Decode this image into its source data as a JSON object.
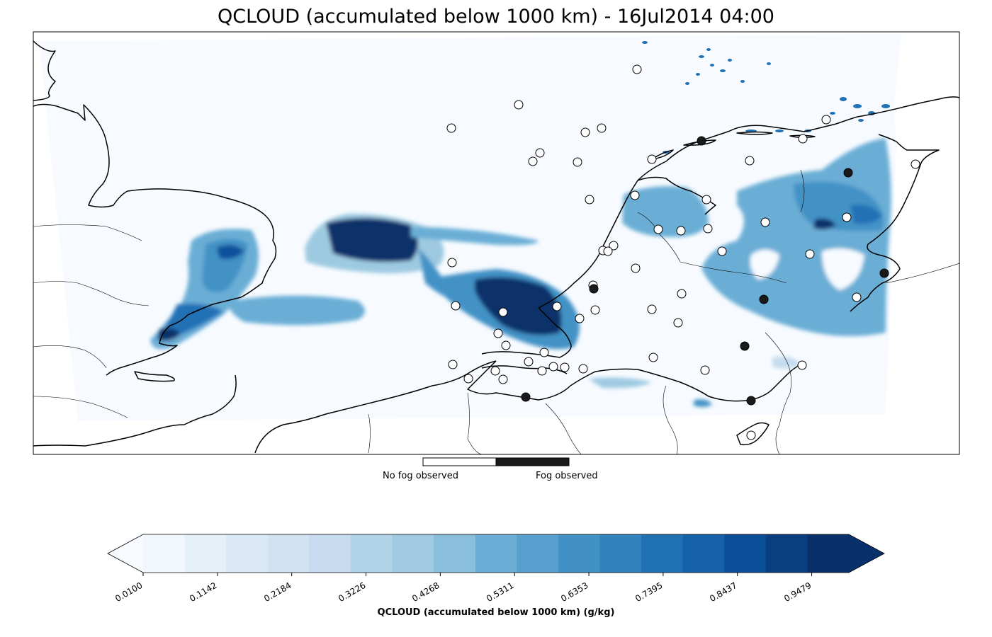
{
  "title": "QCLOUD (accumulated below 1000 km) - 16Jul2014 04:00",
  "map": {
    "background_color": "#f7fbff",
    "coastline_color": "#000000",
    "cloud_colors": [
      "#f7fbff",
      "#c6dbef",
      "#6baed6",
      "#2171b5",
      "#08306b"
    ]
  },
  "observations": {
    "no_fog_color": "#ffffff",
    "fog_color": "#1a1a1a"
  },
  "fog_legend": {
    "no_fog_label": "No fog observed",
    "fog_label": "Fog observed"
  },
  "colorbar": {
    "label": "QCLOUD (accumulated below 1000 km) (g/kg)",
    "ticks": [
      "0.0100",
      "0.1142",
      "0.2184",
      "0.3226",
      "0.4268",
      "0.5311",
      "0.6353",
      "0.7395",
      "0.8437",
      "0.9479"
    ],
    "extend": "both",
    "colormap": "Blues",
    "colors": [
      "#f7fbff",
      "#f1f7fd",
      "#e6f0f9",
      "#dbe9f6",
      "#d1e2f3",
      "#c6dbef",
      "#b3d3e8",
      "#9fcae1",
      "#89bedc",
      "#6aaed6",
      "#57a0ce",
      "#4191c6",
      "#3282be",
      "#2070b4",
      "#1561a9",
      "#0a4e97",
      "#093e81",
      "#08306b"
    ],
    "under_color": "#f7fbff",
    "over_color": "#08306b"
  }
}
